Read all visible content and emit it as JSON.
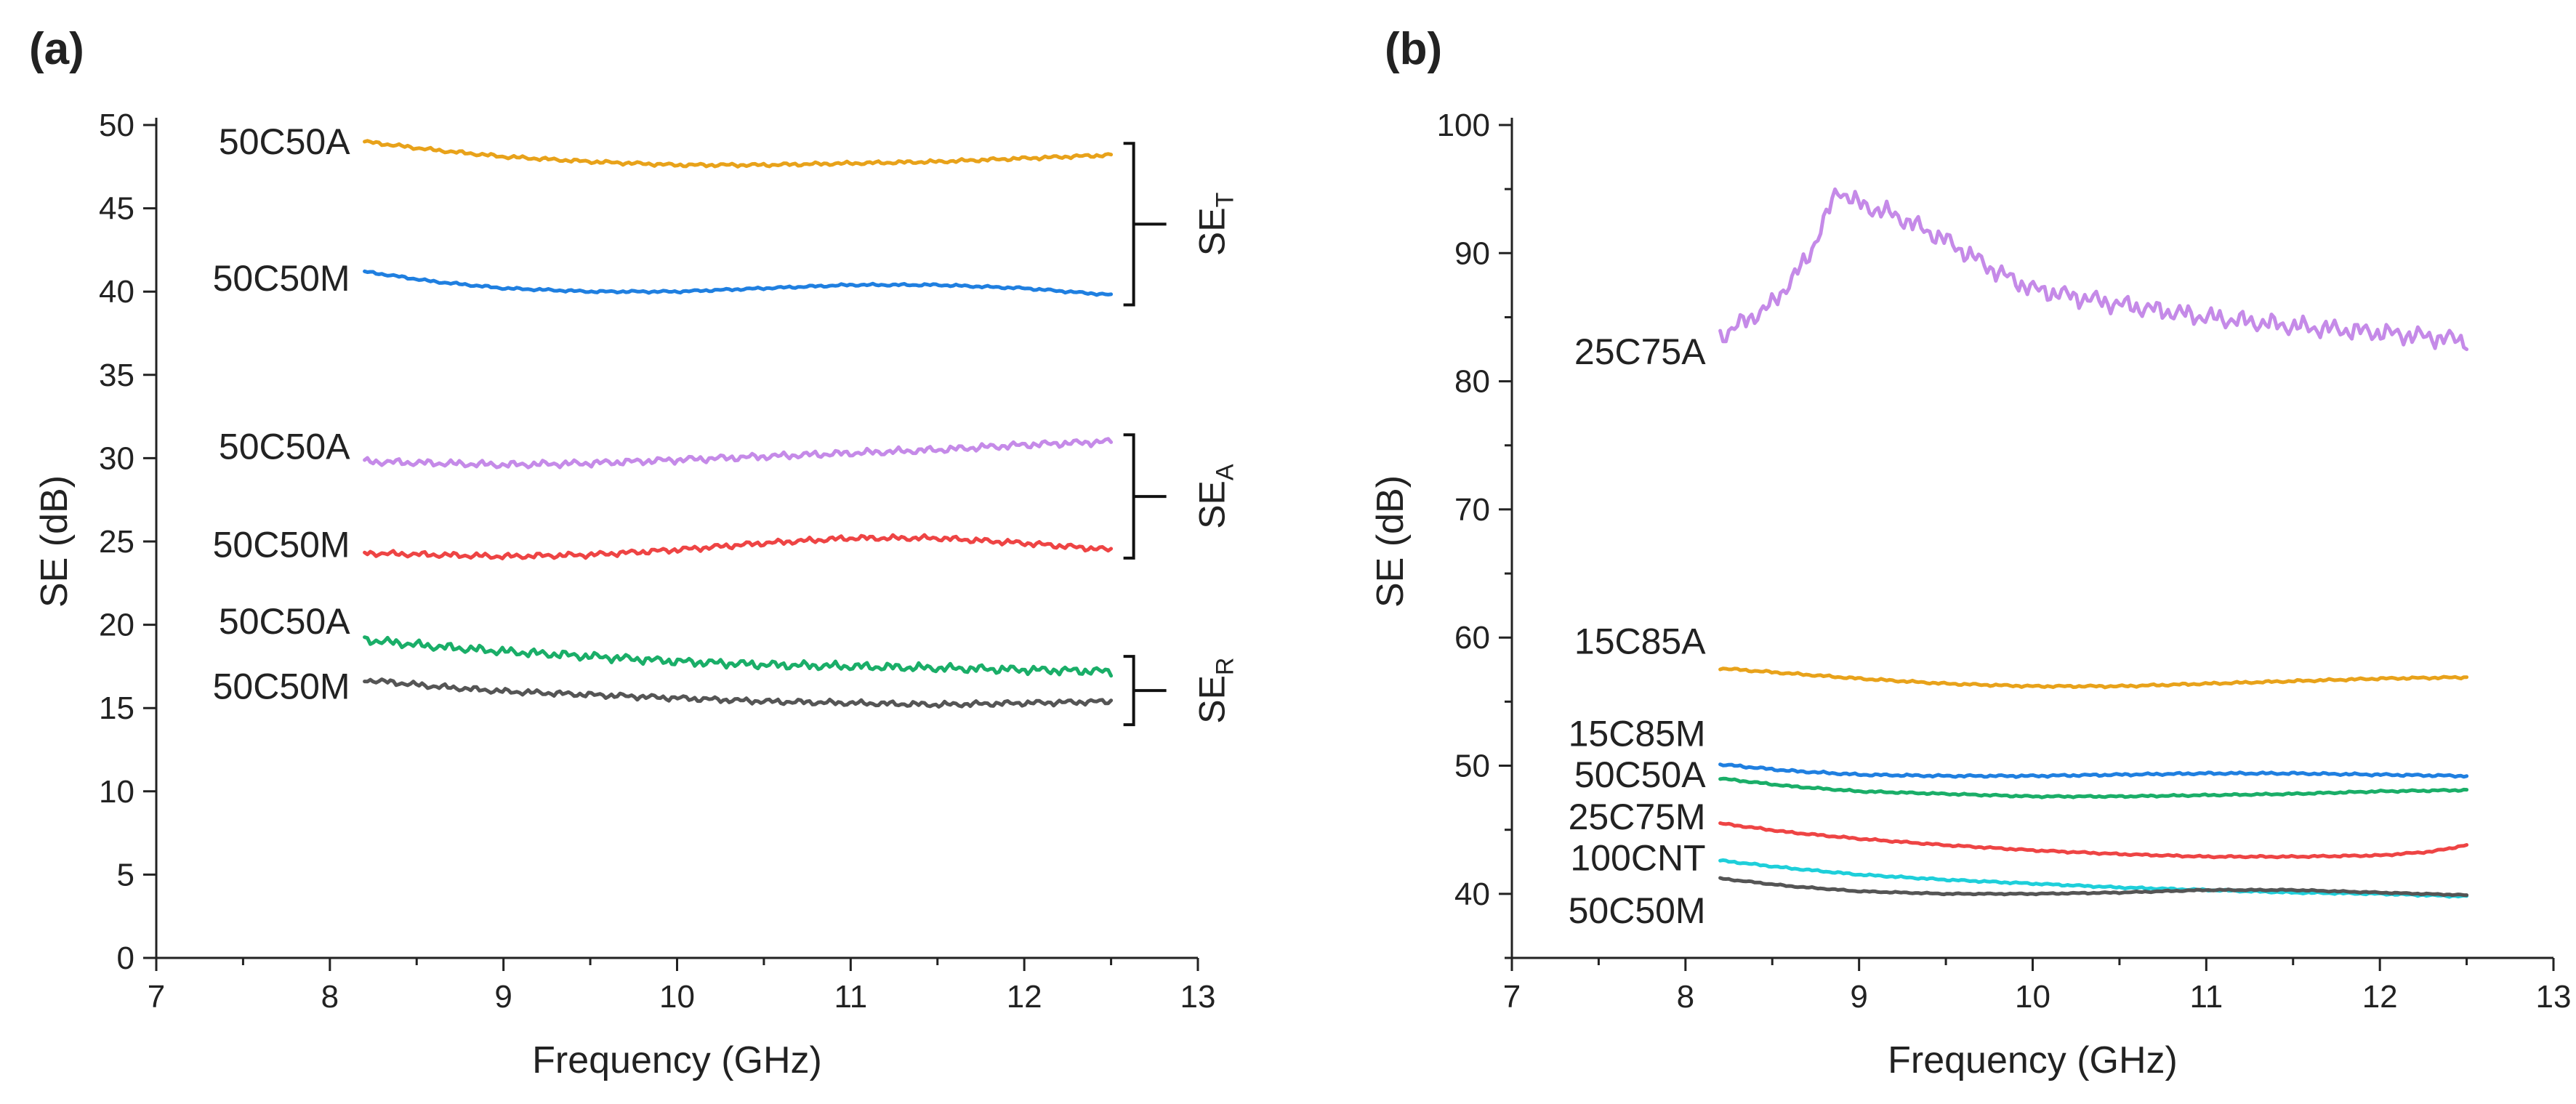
{
  "chart_data": [
    {
      "type": "line",
      "panel_label": "(a)",
      "xlabel": "Frequency (GHz)",
      "ylabel": "SE (dB)",
      "xlim": [
        7,
        13
      ],
      "ylim": [
        0,
        50
      ],
      "x_ticks": [
        7,
        8,
        9,
        10,
        11,
        12,
        13
      ],
      "y_ticks": [
        0,
        5,
        10,
        15,
        20,
        25,
        30,
        35,
        40,
        45,
        50
      ],
      "grid": false,
      "x_range": [
        8.2,
        12.5
      ],
      "series": [
        {
          "name": "50C50A",
          "label_y": 49,
          "color": "#E8A21A",
          "noise": 0.12,
          "x": [
            8.2,
            8.6,
            9.0,
            9.5,
            10.0,
            10.5,
            11.0,
            11.5,
            12.0,
            12.5
          ],
          "y": [
            49.0,
            48.5,
            48.1,
            47.8,
            47.6,
            47.6,
            47.7,
            47.8,
            48.0,
            48.2
          ]
        },
        {
          "name": "50C50M",
          "label_y": 40.8,
          "color": "#1F7FE0",
          "noise": 0.08,
          "x": [
            8.2,
            8.6,
            9.0,
            9.5,
            10.0,
            10.5,
            11.0,
            11.5,
            12.0,
            12.5
          ],
          "y": [
            41.2,
            40.6,
            40.2,
            40.0,
            40.0,
            40.2,
            40.4,
            40.4,
            40.2,
            39.8
          ]
        },
        {
          "name": "50C50A",
          "label_y": 30.7,
          "color": "#C58AE8",
          "noise": 0.25,
          "x": [
            8.2,
            8.6,
            9.0,
            9.5,
            10.0,
            10.5,
            11.0,
            11.5,
            12.0,
            12.5
          ],
          "y": [
            29.8,
            29.7,
            29.6,
            29.7,
            29.9,
            30.1,
            30.3,
            30.5,
            30.8,
            31.0
          ]
        },
        {
          "name": "50C50M",
          "label_y": 24.8,
          "color": "#EE4444",
          "noise": 0.2,
          "x": [
            8.2,
            8.6,
            9.0,
            9.5,
            10.0,
            10.5,
            11.0,
            11.5,
            12.0,
            12.5
          ],
          "y": [
            24.3,
            24.2,
            24.1,
            24.2,
            24.5,
            24.9,
            25.2,
            25.2,
            24.9,
            24.5
          ]
        },
        {
          "name": "50C50A",
          "label_y": 20.2,
          "color": "#1AAE68",
          "noise": 0.3,
          "x": [
            8.2,
            8.6,
            9.0,
            9.5,
            10.0,
            10.5,
            11.0,
            11.5,
            12.0,
            12.5
          ],
          "y": [
            19.1,
            18.7,
            18.4,
            18.1,
            17.8,
            17.6,
            17.5,
            17.4,
            17.3,
            17.2
          ]
        },
        {
          "name": "50C50M",
          "label_y": 16.3,
          "color": "#555555",
          "noise": 0.2,
          "x": [
            8.2,
            8.6,
            9.0,
            9.5,
            10.0,
            10.5,
            11.0,
            11.5,
            12.0,
            12.5
          ],
          "y": [
            16.7,
            16.3,
            16.0,
            15.8,
            15.6,
            15.4,
            15.3,
            15.2,
            15.3,
            15.4
          ]
        }
      ],
      "brackets": [
        {
          "label": "SE",
          "sub": "T",
          "y_top": 48.9,
          "y_bottom": 39.2
        },
        {
          "label": "SE",
          "sub": "A",
          "y_top": 31.4,
          "y_bottom": 24.0
        },
        {
          "label": "SE",
          "sub": "R",
          "y_top": 18.1,
          "y_bottom": 14.0
        }
      ]
    },
    {
      "type": "line",
      "panel_label": "(b)",
      "xlabel": "Frequency (GHz)",
      "ylabel": "SE (dB)",
      "xlim": [
        7,
        13
      ],
      "ylim": [
        35,
        100
      ],
      "x_ticks": [
        7,
        8,
        9,
        10,
        11,
        12,
        13
      ],
      "y_ticks": [
        40,
        50,
        60,
        70,
        80,
        90,
        100
      ],
      "grid": false,
      "x_range": [
        8.2,
        12.5
      ],
      "series": [
        {
          "name": "25C75A",
          "label_y": 82.3,
          "color": "#C58AE8",
          "noise": 0.9,
          "x": [
            8.2,
            8.5,
            8.7,
            8.88,
            9.0,
            9.2,
            9.5,
            9.8,
            10.0,
            10.5,
            11.0,
            11.5,
            12.0,
            12.5
          ],
          "y": [
            83.5,
            86.0,
            89.5,
            95.0,
            93.8,
            93.0,
            91.0,
            88.5,
            87.2,
            86.0,
            85.0,
            84.3,
            83.8,
            83.2
          ]
        },
        {
          "name": "15C85A",
          "label_y": 59.7,
          "color": "#E8A21A",
          "noise": 0.1,
          "x": [
            8.2,
            8.6,
            9.0,
            9.5,
            10.0,
            10.5,
            11.0,
            11.5,
            12.0,
            12.5
          ],
          "y": [
            57.6,
            57.2,
            56.8,
            56.4,
            56.2,
            56.2,
            56.4,
            56.6,
            56.8,
            56.9
          ]
        },
        {
          "name": "15C85M",
          "label_y": 52.5,
          "color": "#1F7FE0",
          "noise": 0.1,
          "x": [
            8.2,
            8.6,
            9.0,
            9.5,
            10.0,
            10.5,
            11.0,
            11.5,
            12.0,
            12.5
          ],
          "y": [
            50.1,
            49.6,
            49.3,
            49.2,
            49.2,
            49.3,
            49.4,
            49.4,
            49.3,
            49.2
          ]
        },
        {
          "name": "50C50A",
          "label_y": 49.3,
          "color": "#1AAE68",
          "noise": 0.08,
          "x": [
            8.2,
            8.6,
            9.0,
            9.5,
            10.0,
            10.5,
            11.0,
            11.5,
            12.0,
            12.5
          ],
          "y": [
            49.0,
            48.4,
            48.0,
            47.8,
            47.6,
            47.6,
            47.7,
            47.8,
            48.0,
            48.1
          ]
        },
        {
          "name": "25C75M",
          "label_y": 46.0,
          "color": "#EE4444",
          "noise": 0.08,
          "x": [
            8.2,
            8.6,
            9.0,
            9.5,
            10.0,
            10.5,
            11.0,
            11.5,
            12.0,
            12.3,
            12.5
          ],
          "y": [
            45.5,
            44.8,
            44.3,
            43.8,
            43.4,
            43.1,
            42.9,
            42.9,
            43.0,
            43.3,
            43.8
          ]
        },
        {
          "name": "100CNT",
          "label_y": 42.8,
          "color": "#1ECFDA",
          "noise": 0.08,
          "x": [
            8.2,
            8.6,
            9.0,
            9.5,
            10.0,
            10.5,
            11.0,
            11.5,
            12.0,
            12.5
          ],
          "y": [
            42.6,
            42.0,
            41.5,
            41.1,
            40.8,
            40.5,
            40.3,
            40.1,
            40.0,
            39.8
          ]
        },
        {
          "name": "50C50M",
          "label_y": 38.7,
          "color": "#555555",
          "noise": 0.06,
          "x": [
            8.2,
            8.6,
            9.0,
            9.5,
            10.0,
            10.5,
            11.0,
            11.5,
            12.0,
            12.5
          ],
          "y": [
            41.2,
            40.6,
            40.2,
            40.0,
            40.0,
            40.1,
            40.3,
            40.3,
            40.1,
            39.9
          ]
        }
      ],
      "brackets": []
    }
  ]
}
